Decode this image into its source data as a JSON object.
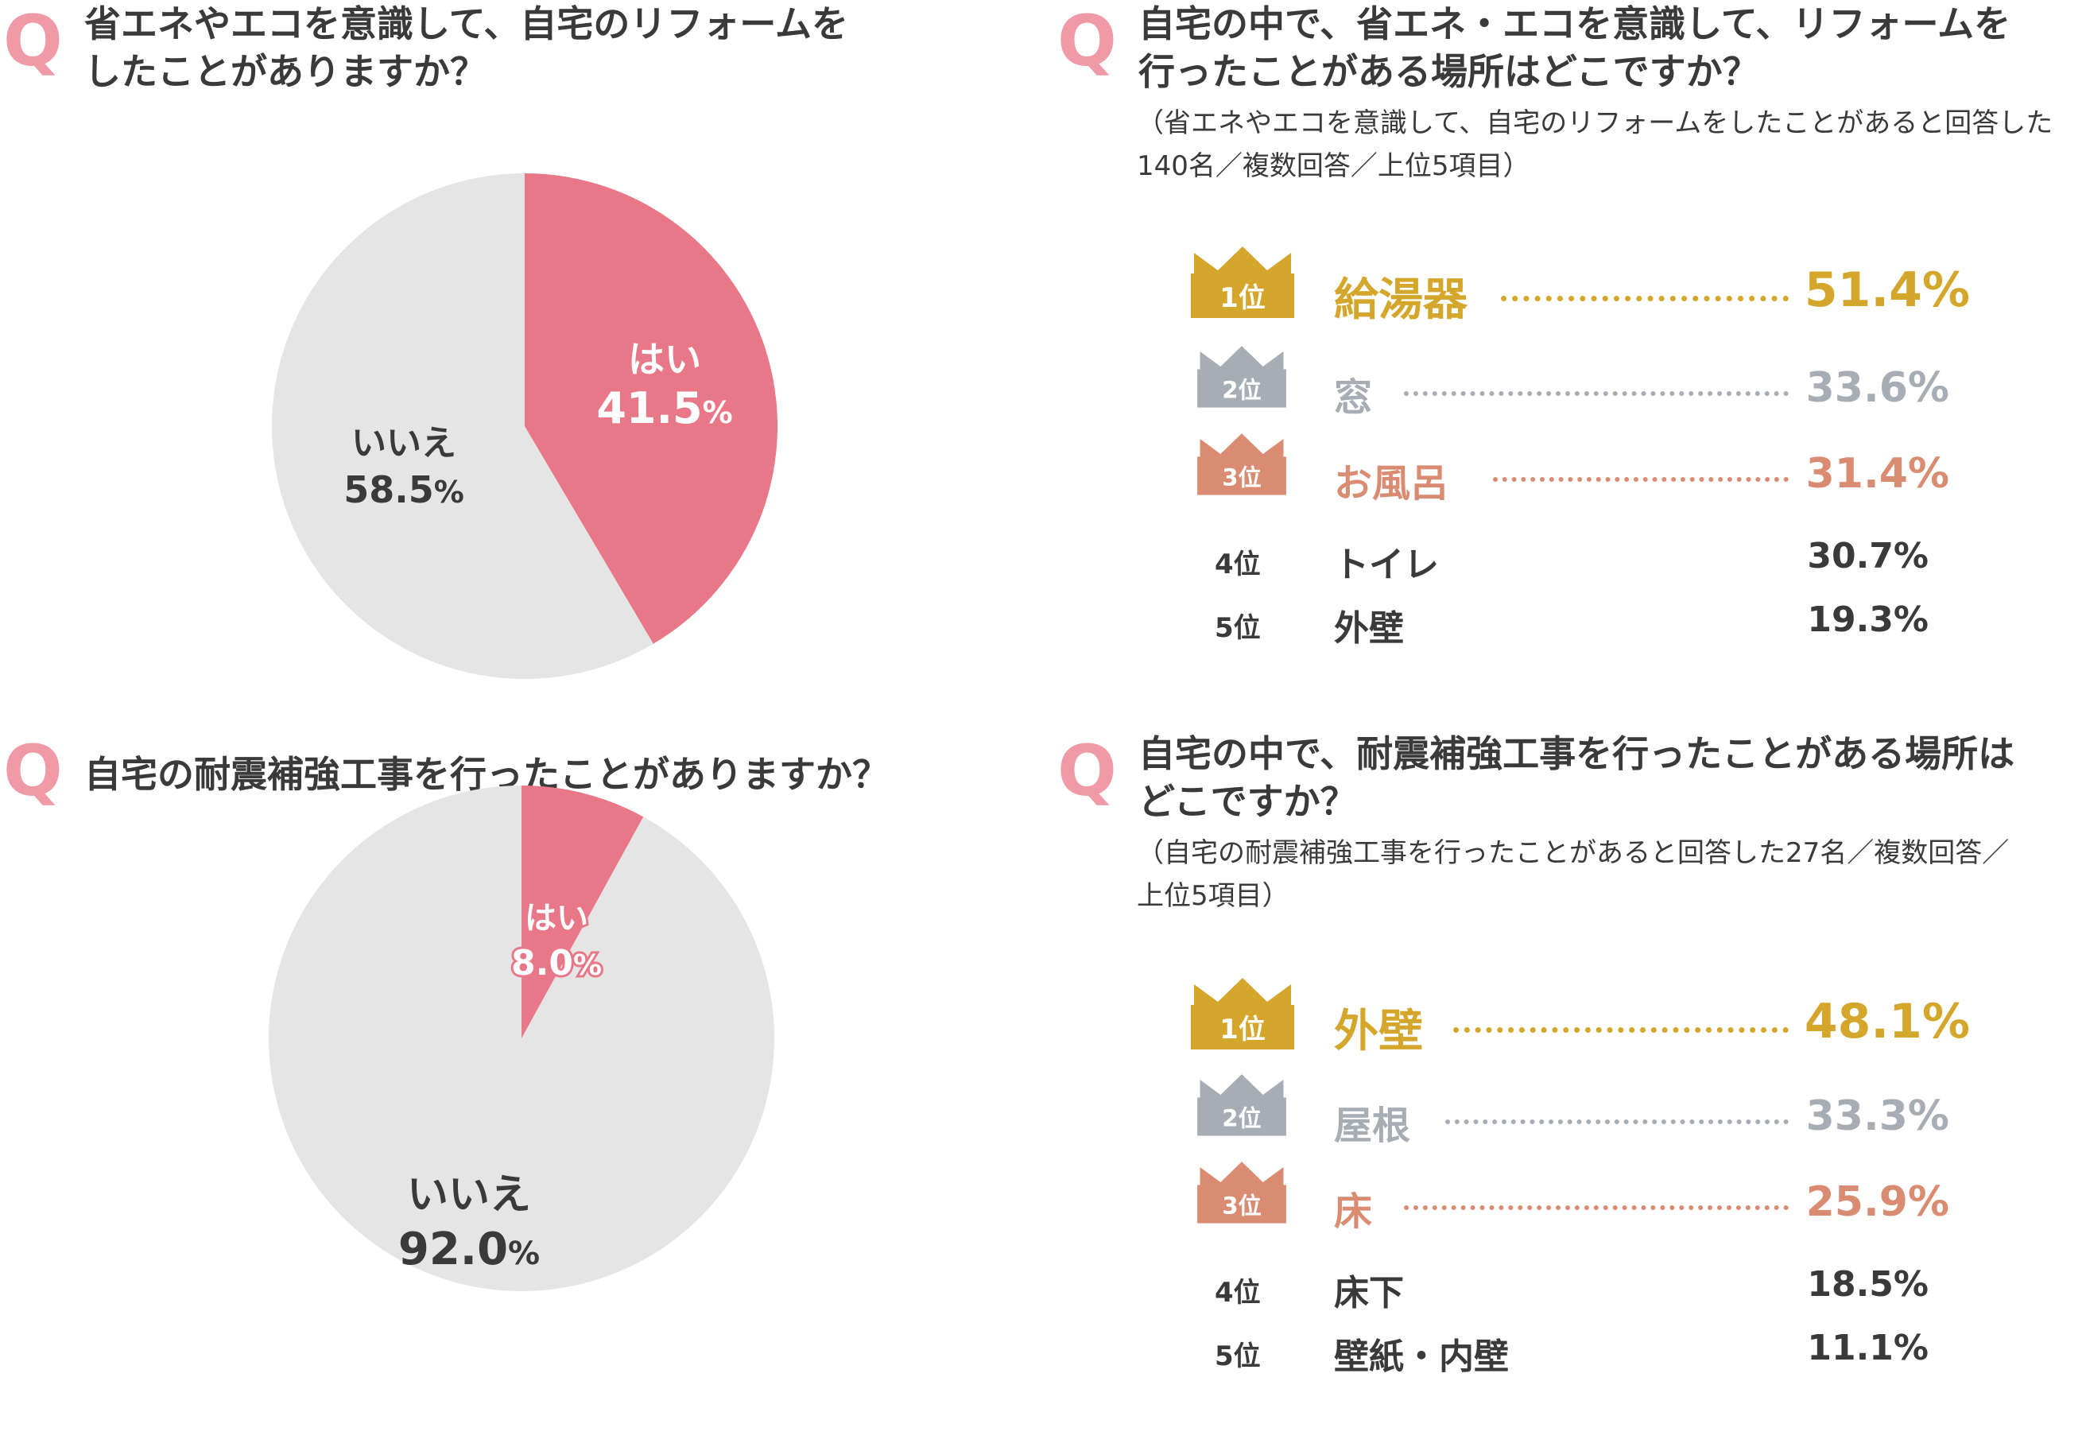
{
  "colors": {
    "accent_q": "#ef9aa6",
    "pie_yes": "#e87888",
    "pie_no": "#e5e5e5",
    "gold": "#d4a72c",
    "silver": "#a6adb4",
    "bronze": "#d98c72",
    "text": "#3a3a3a"
  },
  "q_icon": "Q",
  "panel1": {
    "question": "省エネやエコを意識して、自宅のリフォームを\nしたことがありますか？"
  },
  "panel2": {
    "question": "自宅の中で、省エネ・エコを意識して、リフォームを\n行ったことがある場所はどこですか？",
    "note": "（省エネやエコを意識して、自宅のリフォームをしたことがあると回答した\n 140名／複数回答／上位5項目）",
    "ranks": [
      {
        "rank": "1位",
        "label": "給湯器",
        "value": "51.4%"
      },
      {
        "rank": "2位",
        "label": "窓",
        "value": "33.6%"
      },
      {
        "rank": "3位",
        "label": "お風呂",
        "value": "31.4%"
      },
      {
        "rank": "4位",
        "label": "トイレ",
        "value": "30.7%"
      },
      {
        "rank": "5位",
        "label": "外壁",
        "value": "19.3%"
      }
    ]
  },
  "panel3": {
    "question": "自宅の耐震補強工事を行ったことがありますか？"
  },
  "panel4": {
    "question": "自宅の中で、耐震補強工事を行ったことがある場所は\nどこですか？",
    "note": "（自宅の耐震補強工事を行ったことがあると回答した27名／複数回答／\n上位5項目）",
    "ranks": [
      {
        "rank": "1位",
        "label": "外壁",
        "value": "48.1%"
      },
      {
        "rank": "2位",
        "label": "屋根",
        "value": "33.3%"
      },
      {
        "rank": "3位",
        "label": "床",
        "value": "25.9%"
      },
      {
        "rank": "4位",
        "label": "床下",
        "value": "18.5%"
      },
      {
        "rank": "5位",
        "label": "壁紙・内壁",
        "value": "11.1%"
      }
    ]
  },
  "chart_data": [
    {
      "type": "pie",
      "title": "省エネやエコを意識して、自宅のリフォームをしたことがありますか？",
      "slices": [
        {
          "label": "はい",
          "value": 41.5,
          "value_text": "41.5",
          "unit": "%"
        },
        {
          "label": "いいえ",
          "value": 58.5,
          "value_text": "58.5",
          "unit": "%"
        }
      ]
    },
    {
      "type": "pie",
      "title": "自宅の耐震補強工事を行ったことがありますか？",
      "slices": [
        {
          "label": "はい",
          "value": 8.0,
          "value_text": "8.0",
          "unit": "%"
        },
        {
          "label": "いいえ",
          "value": 92.0,
          "value_text": "92.0",
          "unit": "%"
        }
      ]
    }
  ]
}
